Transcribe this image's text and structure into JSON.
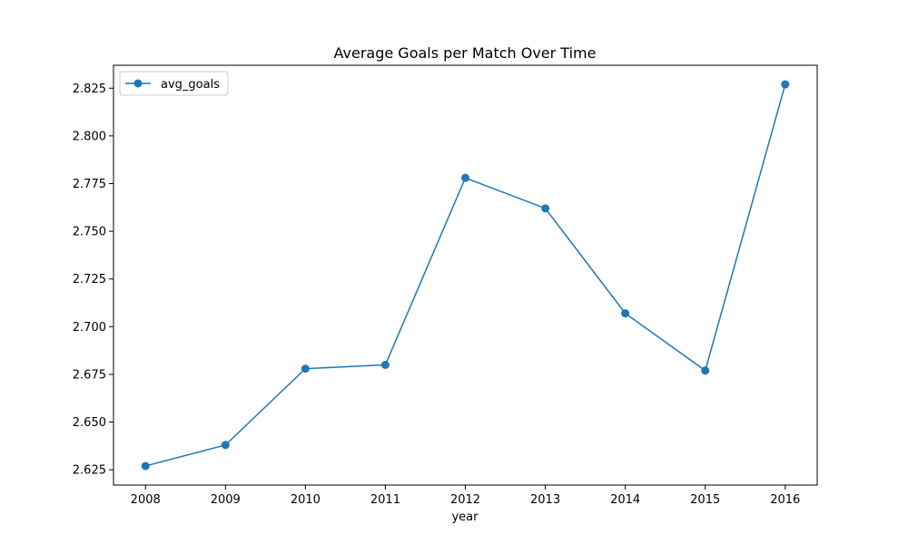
{
  "chart_data": {
    "type": "line",
    "title": "Average Goals per Match Over Time",
    "xlabel": "year",
    "ylabel": "",
    "x": [
      2008,
      2009,
      2010,
      2011,
      2012,
      2013,
      2014,
      2015,
      2016
    ],
    "xticks": [
      "2008",
      "2009",
      "2010",
      "2011",
      "2012",
      "2013",
      "2014",
      "2015",
      "2016"
    ],
    "yticks": [
      2.625,
      2.65,
      2.675,
      2.7,
      2.725,
      2.75,
      2.775,
      2.8,
      2.825
    ],
    "ytick_labels": [
      "2.625",
      "2.650",
      "2.675",
      "2.700",
      "2.725",
      "2.750",
      "2.775",
      "2.800",
      "2.825"
    ],
    "xlim": [
      2007.6,
      2016.4
    ],
    "ylim": [
      2.617,
      2.837
    ],
    "series": [
      {
        "name": "avg_goals",
        "color": "#1f77b4",
        "marker": "circle",
        "values": [
          2.627,
          2.638,
          2.678,
          2.68,
          2.778,
          2.762,
          2.707,
          2.677,
          2.827
        ]
      }
    ],
    "legend": {
      "position": "top-left"
    },
    "grid": false
  }
}
